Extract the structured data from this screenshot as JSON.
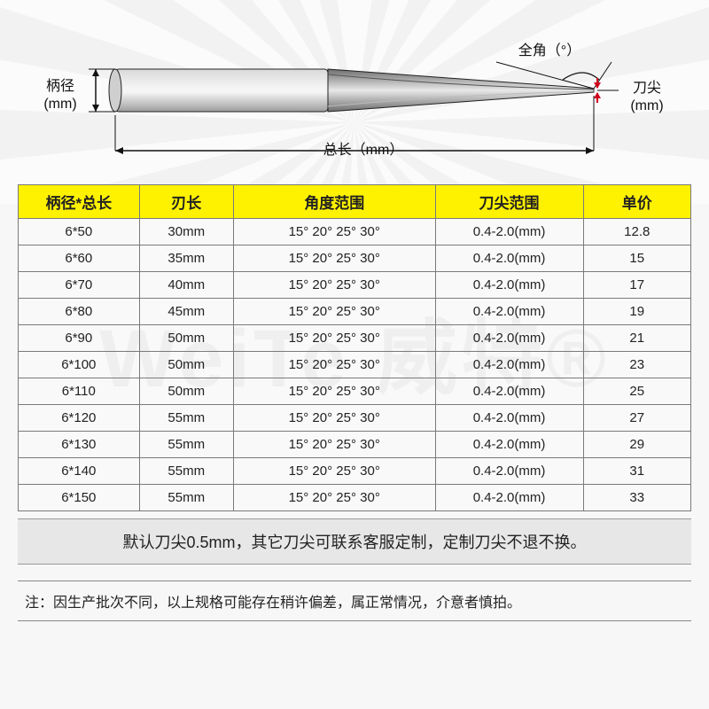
{
  "diagram": {
    "label_shank": "柄径\n(mm)",
    "label_angle": "全角（°）",
    "label_tip": "刀尖\n(mm)",
    "label_length": "总长（mm）",
    "colors": {
      "shank_light": "#d9d9d9",
      "shank_mid": "#9d9d9d",
      "flute_dark": "#6d6d6d",
      "flute_hilite": "#e8e8e8",
      "outline": "#222222",
      "guide": "#111111",
      "tip_arrow": "#d0021b"
    }
  },
  "watermark": "WeiTe 威特®",
  "table": {
    "header_bg": "#fff200",
    "columns": [
      "柄径*总长",
      "刃长",
      "角度范围",
      "刀尖范围",
      "单价"
    ],
    "col_widths": [
      "18%",
      "14%",
      "30%",
      "22%",
      "16%"
    ],
    "rows": [
      [
        "6*50",
        "30mm",
        "15° 20° 25° 30°",
        "0.4-2.0(mm)",
        "12.8"
      ],
      [
        "6*60",
        "35mm",
        "15° 20° 25° 30°",
        "0.4-2.0(mm)",
        "15"
      ],
      [
        "6*70",
        "40mm",
        "15° 20° 25° 30°",
        "0.4-2.0(mm)",
        "17"
      ],
      [
        "6*80",
        "45mm",
        "15° 20° 25° 30°",
        "0.4-2.0(mm)",
        "19"
      ],
      [
        "6*90",
        "50mm",
        "15° 20° 25° 30°",
        "0.4-2.0(mm)",
        "21"
      ],
      [
        "6*100",
        "50mm",
        "15° 20° 25° 30°",
        "0.4-2.0(mm)",
        "23"
      ],
      [
        "6*110",
        "50mm",
        "15° 20° 25° 30°",
        "0.4-2.0(mm)",
        "25"
      ],
      [
        "6*120",
        "55mm",
        "15° 20° 25° 30°",
        "0.4-2.0(mm)",
        "27"
      ],
      [
        "6*130",
        "55mm",
        "15° 20° 25° 30°",
        "0.4-2.0(mm)",
        "29"
      ],
      [
        "6*140",
        "55mm",
        "15° 20° 25° 30°",
        "0.4-2.0(mm)",
        "31"
      ],
      [
        "6*150",
        "55mm",
        "15° 20° 25° 30°",
        "0.4-2.0(mm)",
        "33"
      ]
    ]
  },
  "note1": "默认刀尖0.5mm，其它刀尖可联系客服定制，定制刀尖不退不换。",
  "note2": "注：因生产批次不同，以上规格可能存在稍许偏差，属正常情况，介意者慎拍。"
}
